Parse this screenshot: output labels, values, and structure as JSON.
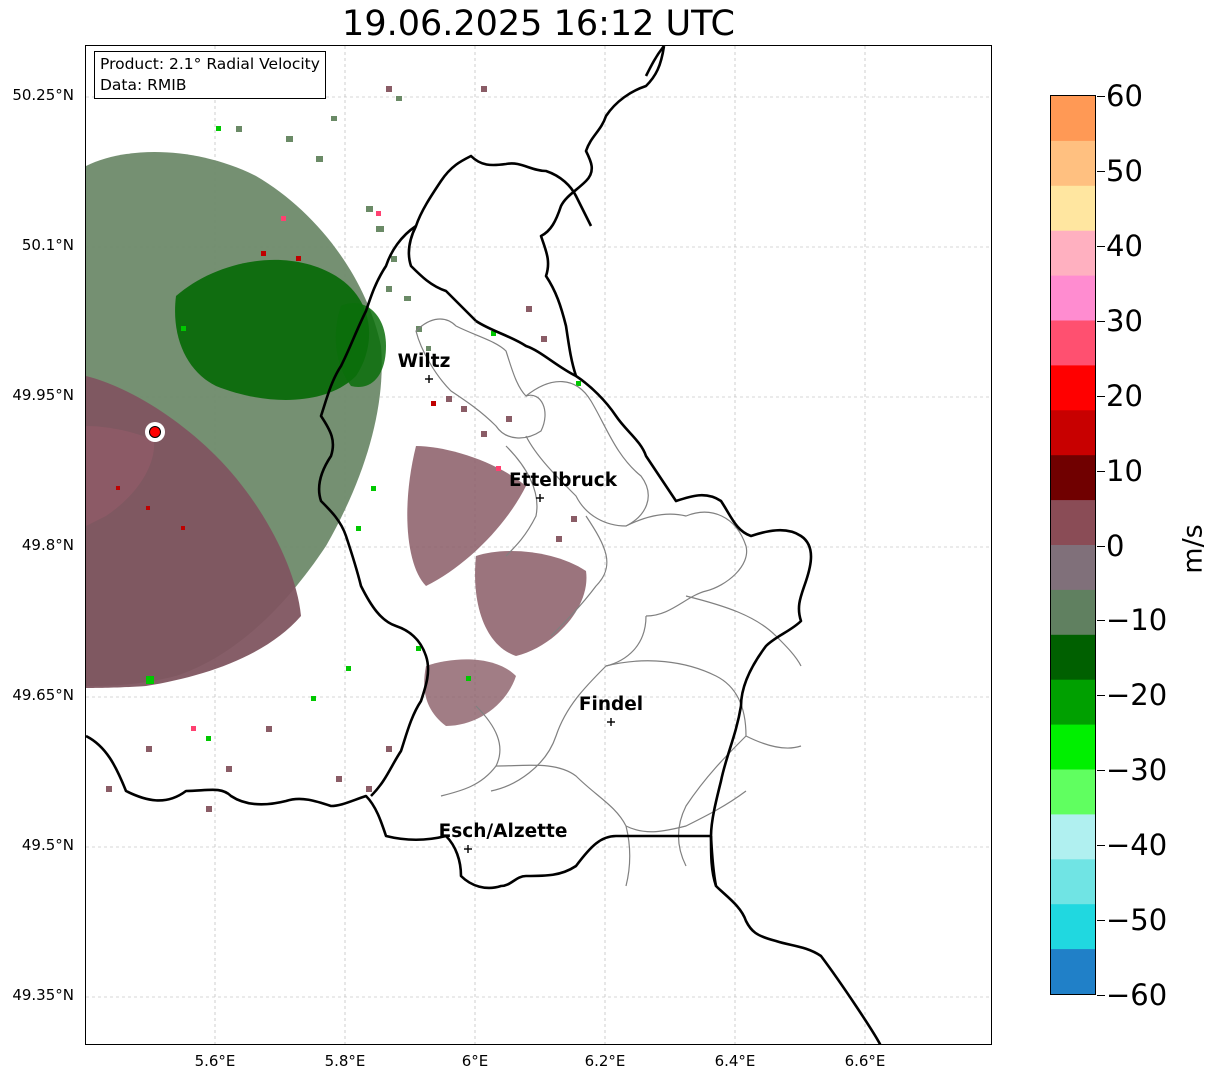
{
  "title": "19.06.2025 16:12 UTC",
  "info": {
    "product": "Product: 2.1° Radial Velocity",
    "data": "Data: RMIB"
  },
  "lat_labels": [
    "50.25°N",
    "50.1°N",
    "49.95°N",
    "49.8°N",
    "49.65°N",
    "49.5°N",
    "49.35°N"
  ],
  "lon_labels": [
    "5.6°E",
    "5.8°E",
    "6°E",
    "6.2°E",
    "6.4°E",
    "6.6°E"
  ],
  "cities": [
    {
      "name": "Wiltz"
    },
    {
      "name": "Ettelbruck"
    },
    {
      "name": "Findel"
    },
    {
      "name": "Esch/Alzette"
    }
  ],
  "colorbar": {
    "unit": "m/s",
    "ticks": [
      "60",
      "50",
      "40",
      "30",
      "20",
      "10",
      "0",
      "−10",
      "−20",
      "−30",
      "−40",
      "−50",
      "−60"
    ],
    "range": [
      -60,
      60
    ],
    "colors": [
      "#ff9955",
      "#ffc080",
      "#ffe6a0",
      "#ffb0c0",
      "#ff8cd0",
      "#ff5070",
      "#ff0000",
      "#c80000",
      "#700000",
      "#8a4c56",
      "#80707a",
      "#608060",
      "#006000",
      "#00a000",
      "#00f000",
      "#60ff60",
      "#b0f0f0",
      "#70e4e4",
      "#20d8e0",
      "#2080c8"
    ]
  },
  "radar": {
    "marker_color": "#ff0000"
  }
}
